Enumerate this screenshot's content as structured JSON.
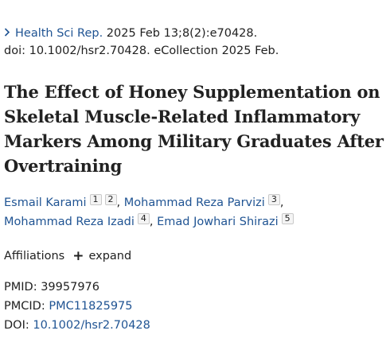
{
  "citation": {
    "journal": "Health Sci Rep.",
    "date_line": " 2025 Feb 13;8(2):e70428.",
    "doi_line": "doi: 10.1002/hsr2.70428. eCollection 2025 Feb."
  },
  "article": {
    "title": "The Effect of Honey Supplementation on Skeletal Muscle-Related Inflammatory Markers Among Military Graduates After Overtraining"
  },
  "authors": [
    {
      "name": "Esmail Karami",
      "affs": [
        "1",
        "2"
      ],
      "sep": ", "
    },
    {
      "name": "Mohammad Reza Parvizi",
      "affs": [
        "3"
      ],
      "sep": ","
    },
    {
      "name": "Mohammad Reza Izadi",
      "affs": [
        "4"
      ],
      "sep": ", "
    },
    {
      "name": "Emad Jowhari Shirazi",
      "affs": [
        "5"
      ],
      "sep": ""
    }
  ],
  "affiliations": {
    "label": "Affiliations",
    "expand_label": "expand"
  },
  "identifiers": {
    "pmid_label": "PMID:",
    "pmid_value": "39957976",
    "pmcid_label": "PMCID:",
    "pmcid_value": "PMC11825975",
    "doi_label": "DOI:",
    "doi_value": "10.1002/hsr2.70428"
  },
  "colors": {
    "link": "#205493",
    "text": "#212121"
  }
}
